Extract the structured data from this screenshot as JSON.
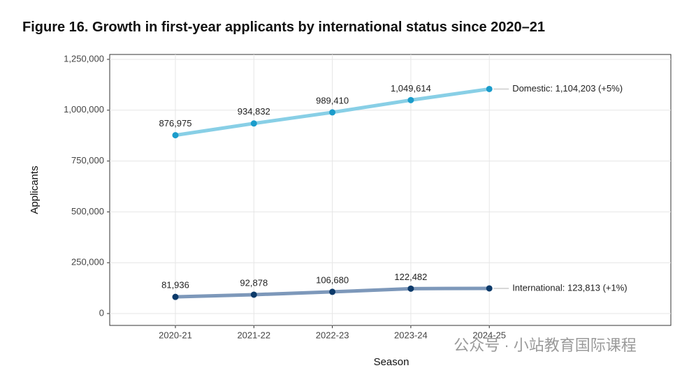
{
  "chart_data": {
    "type": "line",
    "title": "Figure 16. Growth in first-year applicants by international status since 2020–21",
    "x_label": "Season",
    "y_label": "Applicants",
    "categories": [
      "2020-21",
      "2021-22",
      "2022-23",
      "2023-24",
      "2024-25"
    ],
    "series": [
      {
        "name": "Domestic",
        "color": "#88cfe6",
        "point_color": "#1b9ccb",
        "values": [
          876975,
          934832,
          989410,
          1049614,
          1104203
        ],
        "value_labels": [
          "876,975",
          "934,832",
          "989,410",
          "1,049,614",
          null
        ],
        "end_label": "Domestic: 1,104,203 (+5%)"
      },
      {
        "name": "International",
        "color": "#7d98ba",
        "point_color": "#0c3a6a",
        "values": [
          81936,
          92878,
          106680,
          122482,
          123813
        ],
        "value_labels": [
          "81,936",
          "92,878",
          "106,680",
          "122,482",
          null
        ],
        "end_label": "International: 123,813 (+1%)"
      }
    ],
    "ylim": [
      0,
      1250000
    ],
    "yticks": [
      0,
      {
        "value": 250000,
        "label": "250,000"
      },
      {
        "value": 500000,
        "label": "500,000"
      },
      {
        "value": 750000,
        "label": "750,000"
      },
      {
        "value": 1000000,
        "label": "1,000,000"
      },
      {
        "value": 1250000,
        "label": "1,250,000"
      }
    ],
    "grid": true,
    "watermark": "公众号 · 小站教育国际课程"
  }
}
